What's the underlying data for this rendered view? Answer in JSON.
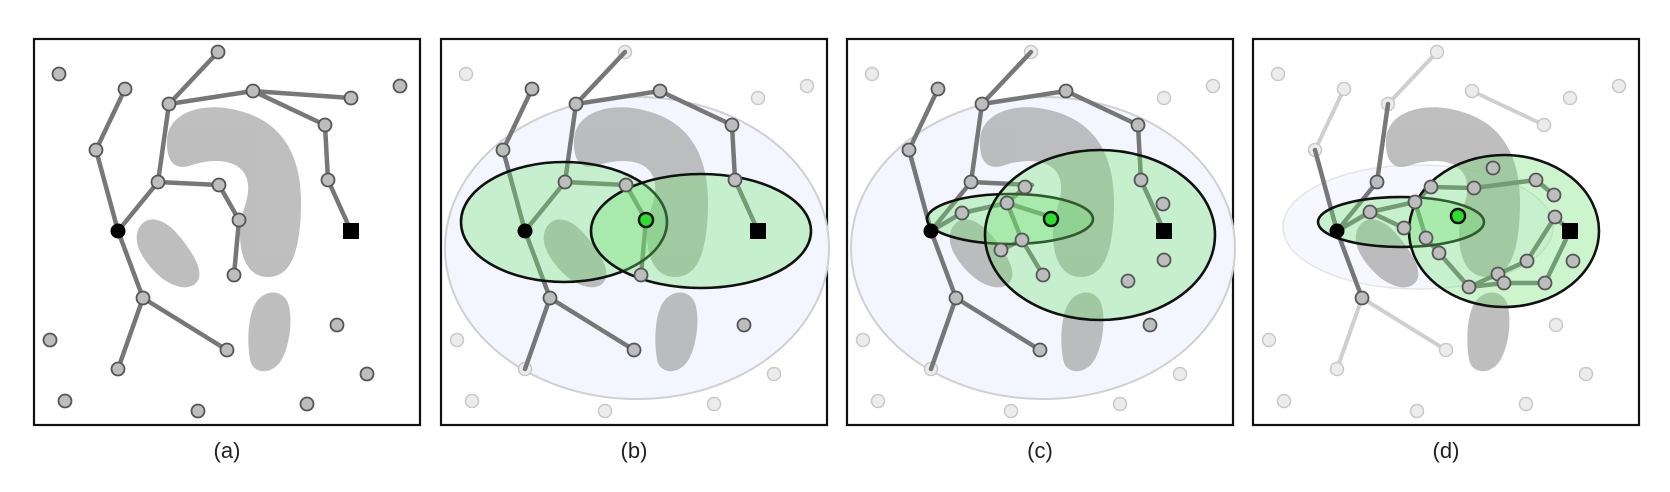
{
  "figure": {
    "panels": [
      {
        "id": "a",
        "caption": "(a)"
      },
      {
        "id": "b",
        "caption": "(b)"
      },
      {
        "id": "c",
        "caption": "(c)"
      },
      {
        "id": "d",
        "caption": "(d)"
      }
    ]
  },
  "colors": {
    "obstacle": "#a9a9a9",
    "edge": "#777777",
    "node_fill": "#bdbdbd",
    "ellipse_fill": "#6fe26f",
    "midpoint": "#2ede2e",
    "outer_ellipse_fill": "#f4f6ff"
  },
  "icons": {
    "start": "filled-circle",
    "goal": "filled-square",
    "midpoint": "green-circle"
  }
}
